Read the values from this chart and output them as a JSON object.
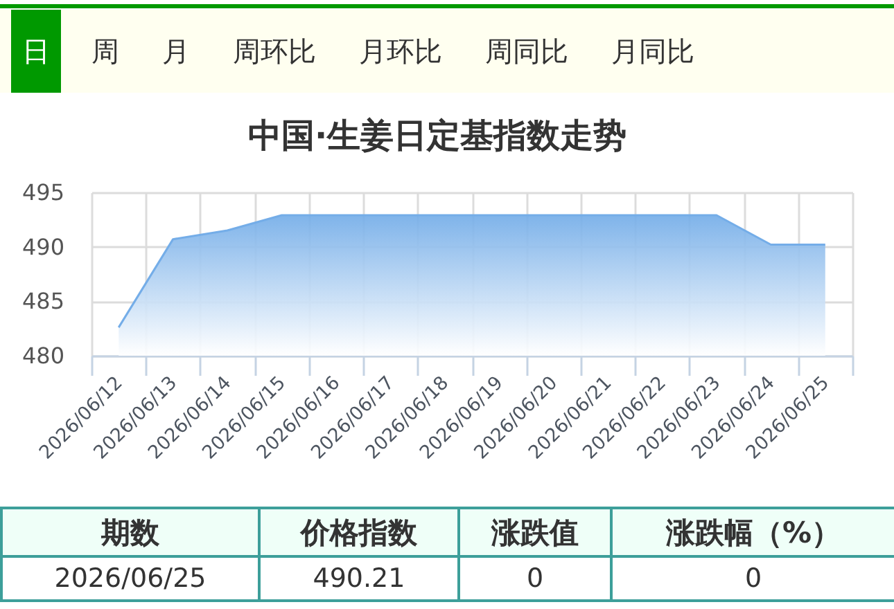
{
  "chart_data": [
    {
      "type": "other",
      "categories": [
        "日",
        "周",
        "月",
        "周环比",
        "月环比",
        "周同比",
        "月同比"
      ]
    },
    {
      "type": "area",
      "title": "中国·生姜日定基指数走势",
      "categories": [
        "2026/06/12",
        "2026/06/13",
        "2026/06/14",
        "2026/06/15",
        "2026/06/16",
        "2026/06/17",
        "2026/06/18",
        "2026/06/19",
        "2026/06/20",
        "2026/06/21",
        "2026/06/22",
        "2026/06/23",
        "2026/06/24",
        "2026/06/25"
      ],
      "series": [
        {
          "color": "#74ade8",
          "values": [
            482.6,
            490.7,
            491.5,
            492.9,
            492.9,
            492.9,
            492.9,
            492.9,
            492.9,
            492.9,
            492.9,
            492.9,
            490.2,
            490.2
          ]
        }
      ],
      "ylim": [
        480,
        495
      ],
      "yticks": [
        480,
        485,
        490,
        495
      ],
      "grid": true
    },
    {
      "type": "other",
      "categories": [
        "期数",
        "价格指数",
        "涨跌值",
        "涨跌幅（%）"
      ],
      "annotations": [
        "2026/06/25",
        "490.21",
        "0",
        "0"
      ]
    }
  ]
}
